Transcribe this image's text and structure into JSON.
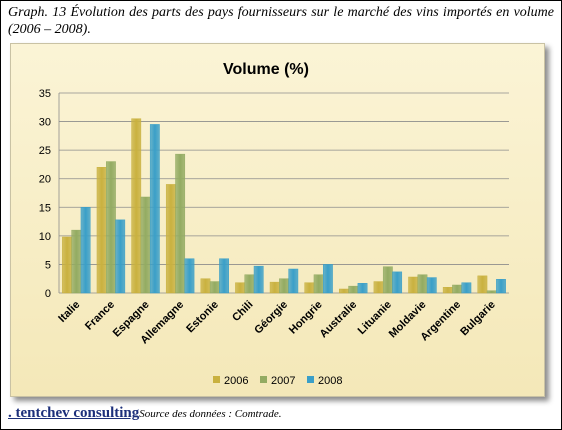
{
  "caption": "Graph. 13 Évolution des parts des pays fournisseurs sur le marché des vins importés en volume (2006 – 2008).",
  "footer": {
    "brand": ". tentchev consulting",
    "source": "Source des données : Comtrade."
  },
  "chart_data": {
    "type": "bar",
    "title": "Volume (%)",
    "xlabel": "",
    "ylabel": "",
    "ylim": [
      0,
      35
    ],
    "yticks": [
      0,
      5,
      10,
      15,
      20,
      25,
      30,
      35
    ],
    "grid": true,
    "legend_position": "bottom",
    "categories": [
      "Italie",
      "France",
      "Espagne",
      "Allemagne",
      "Estonie",
      "Chili",
      "Géorgie",
      "Hongrie",
      "Australie",
      "Lituanie",
      "Moldavie",
      "Argentine",
      "Bulgarie"
    ],
    "series": [
      {
        "name": "2006",
        "color": "#c9b13f",
        "values": [
          9.8,
          22.0,
          30.5,
          19.0,
          2.5,
          1.8,
          1.9,
          1.8,
          0.7,
          2.0,
          2.8,
          1.0,
          3.0
        ]
      },
      {
        "name": "2007",
        "color": "#93ab62",
        "values": [
          11.0,
          23.0,
          16.8,
          24.3,
          2.0,
          3.2,
          2.5,
          3.2,
          1.2,
          4.6,
          3.2,
          1.4,
          0.4
        ]
      },
      {
        "name": "2008",
        "color": "#3a9fc8",
        "values": [
          15.0,
          12.8,
          29.5,
          6.0,
          6.0,
          4.7,
          4.2,
          5.0,
          1.7,
          3.7,
          2.7,
          1.8,
          2.4
        ]
      }
    ]
  }
}
